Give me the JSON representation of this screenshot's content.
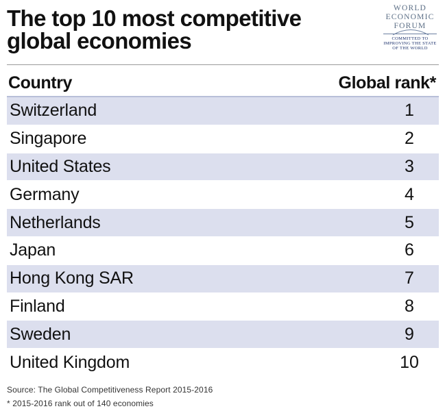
{
  "chart_data": {
    "type": "table",
    "title": "The top 10 most competitive global economies",
    "columns": [
      "Country",
      "Global rank*"
    ],
    "rows": [
      {
        "country": "Switzerland",
        "rank": "1"
      },
      {
        "country": "Singapore",
        "rank": "2"
      },
      {
        "country": "United States",
        "rank": "3"
      },
      {
        "country": "Germany",
        "rank": "4"
      },
      {
        "country": "Netherlands",
        "rank": "5"
      },
      {
        "country": "Japan",
        "rank": "6"
      },
      {
        "country": "Hong Kong SAR",
        "rank": "7"
      },
      {
        "country": "Finland",
        "rank": "8"
      },
      {
        "country": "Sweden",
        "rank": "9"
      },
      {
        "country": "United Kingdom",
        "rank": "10"
      }
    ],
    "source": "Source: The Global Competitiveness Report 2015-2016",
    "note": "* 2015-2016 rank out of 140 economies"
  },
  "logo": {
    "line1": "WORLD",
    "line2": "ECONOMIC",
    "line3": "FORUM",
    "tagline1": "COMMITTED TO",
    "tagline2": "IMPROVING THE STATE",
    "tagline3": "OF THE WORLD"
  },
  "colors": {
    "row_shade": "#dcdfee",
    "logo_blue": "#5c6f86"
  }
}
